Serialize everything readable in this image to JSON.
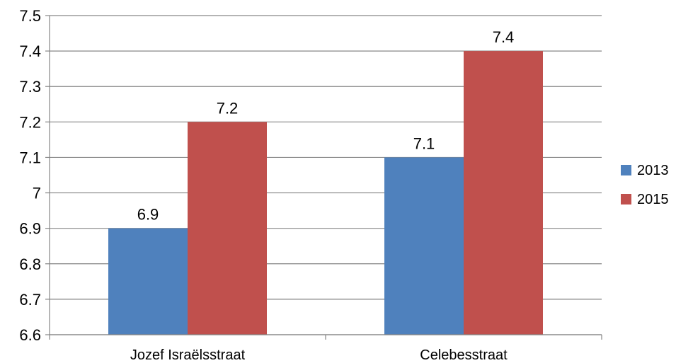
{
  "chart_data": {
    "type": "bar",
    "categories": [
      "Jozef Israëlsstraat",
      "Celebesstraat"
    ],
    "series": [
      {
        "name": "2013",
        "values": [
          6.9,
          7.1
        ],
        "color": "#4F81BD"
      },
      {
        "name": "2015",
        "values": [
          7.2,
          7.4
        ],
        "color": "#C0504D"
      }
    ],
    "data_labels": [
      [
        "6.9",
        "7.1"
      ],
      [
        "7.2",
        "7.4"
      ]
    ],
    "ylim": [
      6.6,
      7.5
    ],
    "y_ticks": [
      6.6,
      6.7,
      6.8,
      6.9,
      7.0,
      7.1,
      7.2,
      7.3,
      7.4,
      7.5
    ],
    "y_tick_labels": [
      "6.6",
      "6.7",
      "6.8",
      "6.9",
      "7",
      "7.1",
      "7.2",
      "7.3",
      "7.4",
      "7.5"
    ],
    "grid": true,
    "legend_position": "right",
    "title": "",
    "xlabel": "",
    "ylabel": ""
  }
}
